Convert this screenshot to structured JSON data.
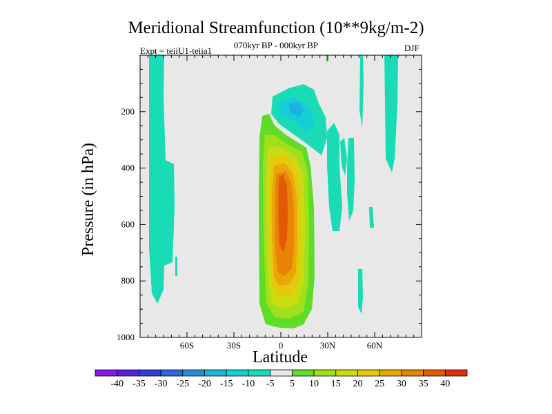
{
  "chart_data": {
    "type": "contour",
    "title": "Meridional Streamfunction (10**9kg/m-2)",
    "subtitle_left": "Expt = teiiU1-teiia1",
    "subtitle_center": "070kyr BP - 000kyr BP",
    "subtitle_right": "DJF",
    "xlabel": "Latitude",
    "ylabel": "Pressure (in hPa)",
    "xlim": [
      -90,
      90
    ],
    "ylim": [
      1000,
      0
    ],
    "xticks": [
      {
        "value": -60,
        "label": "60S"
      },
      {
        "value": -30,
        "label": "30S"
      },
      {
        "value": 0,
        "label": "0"
      },
      {
        "value": 30,
        "label": "30N"
      },
      {
        "value": 60,
        "label": "60N"
      }
    ],
    "yticks": [
      {
        "value": 200,
        "label": "200"
      },
      {
        "value": 400,
        "label": "400"
      },
      {
        "value": 600,
        "label": "600"
      },
      {
        "value": 800,
        "label": "800"
      },
      {
        "value": 1000,
        "label": "1000"
      }
    ],
    "colorbar": {
      "levels": [
        -40,
        -35,
        -30,
        -25,
        -20,
        -15,
        -10,
        -5,
        5,
        10,
        15,
        20,
        25,
        30,
        35,
        40
      ],
      "colors": [
        "#8a1be0",
        "#5a22d6",
        "#2f3fd6",
        "#2a66dd",
        "#1f8fe0",
        "#1ab2e0",
        "#16cfd6",
        "#19dcb6",
        "#e8e8e8",
        "#5fdc28",
        "#9ee01c",
        "#c9dc12",
        "#e6c80c",
        "#e9a808",
        "#e88406",
        "#e25a06",
        "#d83206"
      ]
    },
    "features": [
      {
        "name": "tropical-positive-cell",
        "lat_center": 0,
        "lat_range": [
          -13,
          18
        ],
        "p_range": [
          185,
          975
        ],
        "max_value": 35
      },
      {
        "name": "upper-negative-cell",
        "lat_range": [
          -5,
          22
        ],
        "p_range": [
          115,
          330
        ],
        "min_value": -15
      },
      {
        "name": "southern-negative-band",
        "lat_range": [
          -85,
          -72
        ],
        "p_range": [
          0,
          880
        ],
        "min_value": -10
      },
      {
        "name": "northern-negative-bands",
        "lat_range": [
          30,
          75
        ],
        "p_range": [
          0,
          910
        ],
        "min_value": -10
      }
    ]
  }
}
